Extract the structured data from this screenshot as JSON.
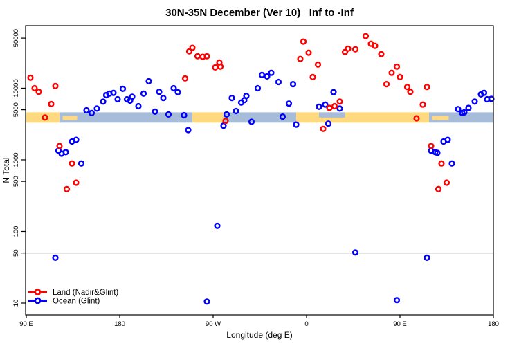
{
  "chart_data": {
    "type": "scatter",
    "title": "30N-35N December (Ver 10)   Inf to -Inf",
    "xlabel": "Longitude (deg E)",
    "ylabel": "N Total",
    "x_axis": {
      "min": 90,
      "max": 540,
      "ticks": [
        {
          "lon": 90,
          "label": "90 E"
        },
        {
          "lon": 180,
          "label": "180"
        },
        {
          "lon": 270,
          "label": "90 W"
        },
        {
          "lon": 360,
          "label": "0"
        },
        {
          "lon": 450,
          "label": "90 E"
        },
        {
          "lon": 540,
          "label": "180"
        }
      ]
    },
    "y_axis": {
      "scale": "log",
      "min": 6.85,
      "max": 74800,
      "ticks": [
        {
          "n": 10,
          "label": "10"
        },
        {
          "n": 50,
          "label": "50"
        },
        {
          "n": 100,
          "label": "100"
        },
        {
          "n": 500,
          "label": "500"
        },
        {
          "n": 1000,
          "label": "1000"
        },
        {
          "n": 5000,
          "label": "5000"
        },
        {
          "n": 10000,
          "label": "10000"
        },
        {
          "n": 50000,
          "label": "50000"
        }
      ]
    },
    "reference_line": {
      "n": 50,
      "color": "#333333"
    },
    "surface_strip": {
      "n_top": 4600,
      "n_bottom": 3300,
      "land_color": "#FFD980",
      "ocean_color": "#A7BCD9",
      "segments": [
        {
          "from": 90,
          "to": 122,
          "surface": "land"
        },
        {
          "from": 122,
          "to": 250,
          "surface": "ocean"
        },
        {
          "from": 250,
          "to": 280,
          "surface": "land"
        },
        {
          "from": 280,
          "to": 350,
          "surface": "ocean"
        },
        {
          "from": 350,
          "to": 478,
          "surface": "land"
        },
        {
          "from": 478,
          "to": 540,
          "surface": "ocean"
        }
      ],
      "patches": [
        {
          "from": 125,
          "to": 139,
          "surface": "land",
          "part": "mid"
        },
        {
          "from": 481,
          "to": 497,
          "surface": "land",
          "part": "mid"
        },
        {
          "from": 372,
          "to": 397,
          "surface": "ocean",
          "part": "top"
        }
      ]
    },
    "legend": {
      "entries": [
        {
          "label": "Land (Nadir&Glint)",
          "color": "#FF0000"
        },
        {
          "label": "Ocean (Glint)",
          "color": "#0000FF"
        }
      ]
    },
    "series": [
      {
        "name": "Land (Nadir&Glint)",
        "color": "#FF0000",
        "points": [
          [
            94,
            14000
          ],
          [
            98,
            10000
          ],
          [
            102,
            8900
          ],
          [
            118,
            10700
          ],
          [
            114,
            6000
          ],
          [
            108,
            3900
          ],
          [
            122,
            1560
          ],
          [
            134,
            890
          ],
          [
            129,
            390
          ],
          [
            138,
            480
          ],
          [
            243,
            13700
          ],
          [
            247,
            32700
          ],
          [
            250,
            36600
          ],
          [
            255,
            28000
          ],
          [
            260,
            27400
          ],
          [
            264,
            28000
          ],
          [
            272,
            19500
          ],
          [
            276,
            22900
          ],
          [
            277,
            20000
          ],
          [
            282,
            3500
          ],
          [
            357,
            44700
          ],
          [
            362,
            31300
          ],
          [
            354,
            25600
          ],
          [
            371,
            21400
          ],
          [
            366,
            14300
          ],
          [
            382,
            5300
          ],
          [
            387,
            5600
          ],
          [
            392,
            6500
          ],
          [
            376,
            2700
          ],
          [
            397,
            32000
          ],
          [
            400,
            35700
          ],
          [
            407,
            35000
          ],
          [
            417,
            53500
          ],
          [
            422,
            41800
          ],
          [
            426,
            39100
          ],
          [
            432,
            29900
          ],
          [
            437,
            11400
          ],
          [
            442,
            16400
          ],
          [
            447,
            20000
          ],
          [
            450,
            14300
          ],
          [
            457,
            10400
          ],
          [
            460,
            8900
          ],
          [
            466,
            3800
          ],
          [
            472,
            5900
          ],
          [
            476,
            10400
          ],
          [
            480,
            1560
          ],
          [
            490,
            890
          ],
          [
            487,
            390
          ],
          [
            495,
            480
          ]
        ]
      },
      {
        "name": "Ocean (Glint)",
        "color": "#0000FF",
        "points": [
          [
            148,
            4900
          ],
          [
            153,
            4500
          ],
          [
            158,
            5200
          ],
          [
            164,
            6500
          ],
          [
            167,
            8000
          ],
          [
            170,
            8400
          ],
          [
            174,
            8600
          ],
          [
            178,
            7000
          ],
          [
            183,
            9800
          ],
          [
            187,
            7000
          ],
          [
            190,
            6700
          ],
          [
            192,
            7600
          ],
          [
            198,
            5600
          ],
          [
            203,
            8400
          ],
          [
            208,
            12500
          ],
          [
            214,
            4700
          ],
          [
            218,
            8900
          ],
          [
            222,
            7300
          ],
          [
            227,
            4300
          ],
          [
            232,
            10000
          ],
          [
            236,
            8800
          ],
          [
            242,
            4200
          ],
          [
            246,
            2600
          ],
          [
            121,
            1340
          ],
          [
            124,
            1220
          ],
          [
            128,
            1280
          ],
          [
            134,
            1800
          ],
          [
            138,
            1900
          ],
          [
            143,
            890
          ],
          [
            280,
            3000
          ],
          [
            283,
            4300
          ],
          [
            288,
            7300
          ],
          [
            292,
            4800
          ],
          [
            297,
            6300
          ],
          [
            300,
            6800
          ],
          [
            302,
            7800
          ],
          [
            307,
            3400
          ],
          [
            313,
            10000
          ],
          [
            317,
            15300
          ],
          [
            322,
            14600
          ],
          [
            326,
            16400
          ],
          [
            333,
            12200
          ],
          [
            337,
            4000
          ],
          [
            343,
            6100
          ],
          [
            347,
            11400
          ],
          [
            350,
            3100
          ],
          [
            372,
            5500
          ],
          [
            378,
            5900
          ],
          [
            381,
            3200
          ],
          [
            386,
            8800
          ],
          [
            392,
            5200
          ],
          [
            480,
            1340
          ],
          [
            484,
            1280
          ],
          [
            486,
            1250
          ],
          [
            492,
            1800
          ],
          [
            496,
            1900
          ],
          [
            500,
            890
          ],
          [
            506,
            5100
          ],
          [
            510,
            4500
          ],
          [
            512,
            4600
          ],
          [
            516,
            5300
          ],
          [
            522,
            6500
          ],
          [
            528,
            8200
          ],
          [
            531,
            8600
          ],
          [
            534,
            7000
          ],
          [
            538,
            7100
          ],
          [
            274,
            120
          ],
          [
            118,
            43
          ],
          [
            264,
            10.5
          ],
          [
            407,
            51
          ],
          [
            476,
            43
          ],
          [
            447,
            11
          ]
        ]
      }
    ],
    "marker": {
      "shape": "open-circle",
      "radius": 3.4,
      "stroke_width": 2.4
    }
  }
}
